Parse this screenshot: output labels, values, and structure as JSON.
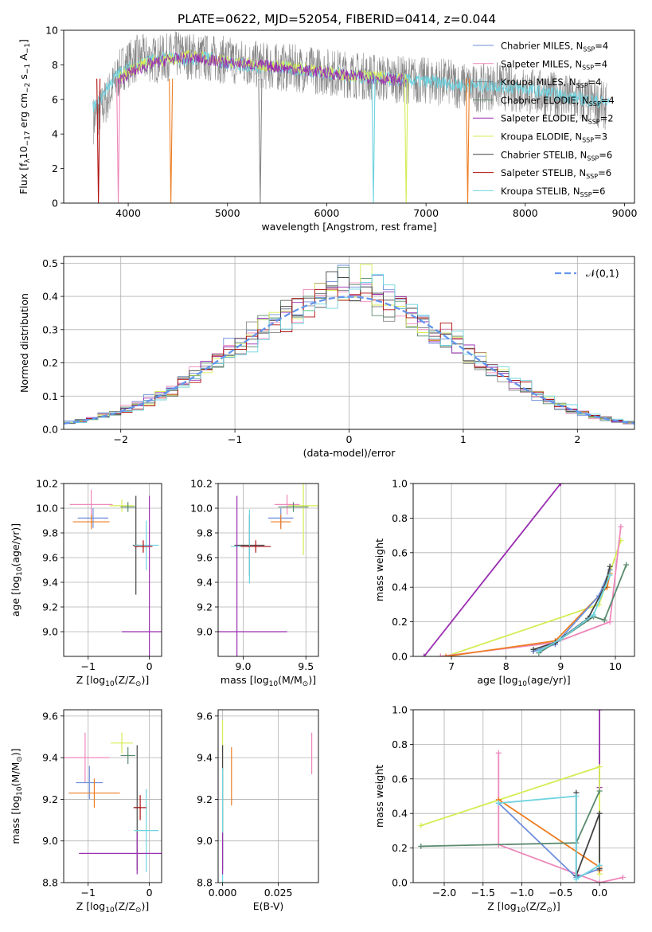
{
  "figure_title": "PLATE=0622, MJD=52054, FIBERID=0414, z=0.044",
  "colors": {
    "chabrier_miles": "#6e8fdc",
    "salpeter_miles": "#ee88bb",
    "kroupa_miles": "#888888",
    "chabrier_elodie": "#5a8a6e",
    "salpeter_elodie": "#9a2fb0",
    "kroupa_elodie": "#d6ec55",
    "chabrier_stelib": "#444444",
    "salpeter_stelib": "#b01010",
    "kroupa_stelib": "#6fd3e0",
    "orange": "#ee7d22",
    "normal": "#6495ed"
  },
  "chart_data": [
    {
      "id": "spectrum",
      "type": "line",
      "xlabel": "wavelength [Angstrom, rest frame]",
      "ylabel_tex": "Flux [f",
      "ylabel_parts": [
        "Flux [f",
        "λ",
        "10",
        "−17",
        " erg cm",
        "−2",
        " s",
        "−1",
        " A",
        "−1",
        "]"
      ],
      "xlim": [
        3350,
        9100
      ],
      "ylim": [
        0,
        10
      ],
      "xticks": [
        4000,
        5000,
        6000,
        7000,
        8000,
        9000
      ],
      "yticks": [
        0,
        2,
        4,
        6,
        8,
        10
      ],
      "grid": false,
      "legend_position": "top-right",
      "legend": [
        {
          "label": "Chabrier MILES, N",
          "sub": "SSP",
          "suffix": "=4",
          "color_key": "chabrier_miles"
        },
        {
          "label": "Salpeter MILES, N",
          "sub": "SSP",
          "suffix": "=4",
          "color_key": "salpeter_miles"
        },
        {
          "label": "Kroupa MILES, N",
          "sub": "SSP",
          "suffix": "=4",
          "color_key": "kroupa_miles"
        },
        {
          "label": "Chabrier ELODIE, N",
          "sub": "SSP",
          "suffix": "=4",
          "color_key": "chabrier_elodie"
        },
        {
          "label": "Salpeter ELODIE, N",
          "sub": "SSP",
          "suffix": "=2",
          "color_key": "salpeter_elodie"
        },
        {
          "label": "Kroupa ELODIE, N",
          "sub": "SSP",
          "suffix": "=3",
          "color_key": "kroupa_elodie"
        },
        {
          "label": "Chabrier STELIB, N",
          "sub": "SSP",
          "suffix": "=6",
          "color_key": "chabrier_stelib"
        },
        {
          "label": "Salpeter STELIB, N",
          "sub": "SSP",
          "suffix": "=6",
          "color_key": "salpeter_stelib"
        },
        {
          "label": "Kroupa STELIB, N",
          "sub": "SSP",
          "suffix": "=6",
          "color_key": "kroupa_stelib"
        }
      ],
      "series": [
        {
          "color_key": "kroupa_miles",
          "x": [
            3650,
            3750,
            3850,
            3950,
            4100,
            4300,
            4500,
            4800,
            5100,
            5400,
            5700,
            6000,
            6300,
            6600,
            6900,
            7200,
            7500,
            7700,
            7900,
            8100,
            8300,
            8500,
            8700,
            8820
          ],
          "y": [
            4.8,
            5.6,
            6.8,
            7.9,
            8.4,
            8.3,
            8.6,
            8.4,
            8.2,
            7.9,
            7.8,
            7.6,
            7.4,
            7.2,
            7.1,
            7.0,
            6.6,
            6.8,
            6.6,
            6.4,
            6.2,
            6.0,
            5.8,
            5.6
          ],
          "noise": 1.4
        },
        {
          "color_key": "kroupa_stelib",
          "x": [
            3640,
            3700,
            3800,
            3900,
            4000,
            4200,
            4400,
            4600,
            4800,
            5000,
            5300,
            5600,
            5900,
            6200,
            6500,
            6800,
            7100,
            7400,
            7700,
            8000,
            8300,
            8600,
            8850
          ],
          "y": [
            5.5,
            5.8,
            6.8,
            7.5,
            7.8,
            8.2,
            8.4,
            8.3,
            8.4,
            8.1,
            7.9,
            7.8,
            7.6,
            7.4,
            7.2,
            7.1,
            7.0,
            6.8,
            6.8,
            6.6,
            6.3,
            6.0,
            5.8
          ],
          "noise": 0.4
        },
        {
          "color_key": "kroupa_elodie",
          "x": [
            3900,
            4000,
            4200,
            4400,
            4600,
            4800,
            5000,
            5300,
            5600,
            5900,
            6200,
            6500,
            6800
          ],
          "y": [
            7.2,
            7.6,
            8.2,
            8.3,
            8.5,
            8.4,
            8.2,
            8.0,
            7.9,
            7.7,
            7.4,
            7.3,
            7.2
          ],
          "noise": 0.35
        },
        {
          "color_key": "salpeter_elodie",
          "x": [
            3900,
            4000,
            4200,
            4400,
            4600,
            4800,
            5000,
            5300,
            5600,
            5900,
            6200,
            6500,
            6800
          ],
          "y": [
            7.0,
            7.5,
            8.0,
            8.3,
            8.4,
            8.3,
            8.1,
            8.0,
            7.8,
            7.6,
            7.4,
            7.2,
            7.1
          ],
          "noise": 0.35
        }
      ],
      "vertical_drops": [
        {
          "x": 3700,
          "color_key": "salpeter_stelib"
        },
        {
          "x": 3900,
          "color_key": "salpeter_miles"
        },
        {
          "x": 4430,
          "color_key": "orange"
        },
        {
          "x": 5330,
          "color_key": "kroupa_miles"
        },
        {
          "x": 6470,
          "color_key": "kroupa_stelib"
        },
        {
          "x": 6800,
          "color_key": "kroupa_elodie"
        },
        {
          "x": 7420,
          "color_key": "orange"
        }
      ]
    },
    {
      "id": "residuals",
      "type": "line",
      "xlabel": "(data-model)/error",
      "ylabel": "Normed distribution",
      "xlim": [
        -2.5,
        2.5
      ],
      "ylim": [
        0,
        0.52
      ],
      "xticks": [
        -2,
        -1,
        0,
        1,
        2
      ],
      "yticks": [
        0.0,
        0.1,
        0.2,
        0.3,
        0.4,
        0.5
      ],
      "grid": true,
      "legend_position": "top-right",
      "legend_label": "𝒩(0,1)",
      "normal_curve": {
        "mu": 0,
        "sigma": 1,
        "color_key": "normal"
      },
      "histogram_colors": [
        "chabrier_miles",
        "salpeter_miles",
        "kroupa_miles",
        "chabrier_elodie",
        "salpeter_elodie",
        "kroupa_elodie",
        "chabrier_stelib",
        "salpeter_stelib",
        "kroupa_stelib"
      ],
      "bin_width": 0.1
    },
    {
      "id": "age_vs_z",
      "type": "scatter",
      "xlabel_parts": [
        "Z [log",
        "10",
        "(Z/Z",
        "⊙",
        ")]"
      ],
      "ylabel_parts": [
        "age  [log",
        "10",
        "(age/yr)]"
      ],
      "xlim": [
        -1.4,
        0.2
      ],
      "ylim": [
        8.8,
        10.2
      ],
      "xticks": [
        -1,
        0
      ],
      "yticks": [
        9.0,
        9.2,
        9.4,
        9.6,
        9.8,
        10.0,
        10.2
      ],
      "grid": true,
      "points": [
        {
          "x": -0.95,
          "y": 10.03,
          "xerr": 0.35,
          "yerr": 0.12,
          "color_key": "salpeter_miles"
        },
        {
          "x": -0.92,
          "y": 9.92,
          "xerr": 0.25,
          "yerr": 0.08,
          "color_key": "chabrier_miles"
        },
        {
          "x": -0.95,
          "y": 9.89,
          "xerr": 0.3,
          "yerr": 0.06,
          "color_key": "orange"
        },
        {
          "x": -0.45,
          "y": 10.02,
          "xerr": 0.2,
          "yerr": 0.05,
          "color_key": "kroupa_elodie"
        },
        {
          "x": -0.35,
          "y": 10.01,
          "xerr": 0.12,
          "yerr": 0.04,
          "color_key": "chabrier_elodie"
        },
        {
          "x": -0.22,
          "y": 9.7,
          "xerr": 0.05,
          "yerr": 0.4,
          "color_key": "chabrier_stelib"
        },
        {
          "x": -0.05,
          "y": 9.7,
          "xerr": 0.2,
          "yerr": 0.2,
          "color_key": "kroupa_stelib"
        },
        {
          "x": -0.1,
          "y": 9.69,
          "xerr": 0.15,
          "yerr": 0.05,
          "color_key": "salpeter_stelib"
        },
        {
          "x": 0.0,
          "y": 9.0,
          "xerr": 0.45,
          "yerr": 1.1,
          "color_key": "salpeter_elodie"
        }
      ]
    },
    {
      "id": "age_vs_mass",
      "type": "scatter",
      "xlabel_parts": [
        "mass [log",
        "10",
        "(M/M",
        "⊙",
        ")]"
      ],
      "xlim": [
        8.8,
        9.6
      ],
      "ylim": [
        8.8,
        10.2
      ],
      "xticks": [
        9.0,
        9.5
      ],
      "yticks": [
        9.0,
        9.2,
        9.4,
        9.6,
        9.8,
        10.0,
        10.2
      ],
      "grid": true,
      "points": [
        {
          "x": 9.35,
          "y": 10.03,
          "xerr": 0.1,
          "yerr": 0.08,
          "color_key": "salpeter_miles"
        },
        {
          "x": 9.3,
          "y": 9.92,
          "xerr": 0.1,
          "yerr": 0.08,
          "color_key": "chabrier_miles"
        },
        {
          "x": 9.3,
          "y": 9.89,
          "xerr": 0.08,
          "yerr": 0.06,
          "color_key": "orange"
        },
        {
          "x": 9.48,
          "y": 10.02,
          "xerr": 0.12,
          "yerr": 0.4,
          "color_key": "kroupa_elodie"
        },
        {
          "x": 9.4,
          "y": 10.01,
          "xerr": 0.12,
          "yerr": 0.04,
          "color_key": "chabrier_elodie"
        },
        {
          "x": 9.05,
          "y": 9.7,
          "xerr": 0.12,
          "yerr": 0.25,
          "color_key": "chabrier_stelib"
        },
        {
          "x": 9.05,
          "y": 9.69,
          "xerr": 0.15,
          "yerr": 0.3,
          "color_key": "kroupa_stelib"
        },
        {
          "x": 9.1,
          "y": 9.69,
          "xerr": 0.12,
          "yerr": 0.05,
          "color_key": "salpeter_stelib"
        },
        {
          "x": 8.95,
          "y": 9.0,
          "xerr": 0.4,
          "yerr": 1.1,
          "color_key": "salpeter_elodie"
        }
      ]
    },
    {
      "id": "mass_weight_vs_age",
      "type": "line",
      "xlabel_parts": [
        "age  [log",
        "10",
        "(age/yr)]"
      ],
      "ylabel": "mass weight",
      "xlim": [
        6.3,
        10.35
      ],
      "ylim": [
        0,
        1
      ],
      "xticks": [
        7,
        8,
        9,
        10
      ],
      "yticks": [
        0.0,
        0.2,
        0.4,
        0.6,
        0.8,
        1.0
      ],
      "grid": true,
      "series": [
        {
          "color_key": "salpeter_elodie",
          "x": [
            6.5,
            9.0
          ],
          "y": [
            0.0,
            1.0
          ]
        },
        {
          "color_key": "kroupa_elodie",
          "x": [
            6.9,
            9.7,
            10.1
          ],
          "y": [
            0.0,
            0.3,
            0.67
          ]
        },
        {
          "color_key": "salpeter_miles",
          "x": [
            6.8,
            8.9,
            9.9,
            10.1
          ],
          "y": [
            0.0,
            0.08,
            0.2,
            0.75
          ]
        },
        {
          "color_key": "orange",
          "x": [
            6.9,
            8.9,
            9.85,
            9.9
          ],
          "y": [
            0.0,
            0.09,
            0.4,
            0.48
          ]
        },
        {
          "color_key": "chabrier_miles",
          "x": [
            8.5,
            8.9,
            9.7,
            9.9
          ],
          "y": [
            0.03,
            0.07,
            0.35,
            0.5
          ]
        },
        {
          "color_key": "chabrier_elodie",
          "x": [
            8.6,
            9.0,
            9.6,
            9.8,
            10.2
          ],
          "y": [
            0.02,
            0.1,
            0.23,
            0.21,
            0.53
          ]
        },
        {
          "color_key": "chabrier_stelib",
          "x": [
            8.5,
            8.9,
            9.5,
            9.8,
            9.9
          ],
          "y": [
            0.04,
            0.08,
            0.22,
            0.4,
            0.52
          ]
        },
        {
          "color_key": "kroupa_stelib",
          "x": [
            8.6,
            9.0,
            9.6,
            9.9
          ],
          "y": [
            0.03,
            0.1,
            0.24,
            0.47
          ]
        }
      ]
    },
    {
      "id": "mass_vs_z",
      "type": "scatter",
      "xlabel_parts": [
        "Z [log",
        "10",
        "(Z/Z",
        "⊙",
        ")]"
      ],
      "ylabel_parts": [
        "mass [log",
        "10",
        "(M/M",
        "⊙",
        ")]"
      ],
      "xlim": [
        -1.4,
        0.2
      ],
      "ylim": [
        8.8,
        9.63
      ],
      "xticks": [
        -1,
        0
      ],
      "yticks": [
        8.8,
        9.0,
        9.2,
        9.4,
        9.6
      ],
      "grid": true,
      "points": [
        {
          "x": -1.05,
          "y": 9.4,
          "xerr": 0.4,
          "yerr": 0.12,
          "color_key": "salpeter_miles"
        },
        {
          "x": -0.98,
          "y": 9.28,
          "xerr": 0.22,
          "yerr": 0.08,
          "color_key": "chabrier_miles"
        },
        {
          "x": -0.9,
          "y": 9.23,
          "xerr": 0.42,
          "yerr": 0.07,
          "color_key": "orange"
        },
        {
          "x": -0.45,
          "y": 9.47,
          "xerr": 0.18,
          "yerr": 0.05,
          "color_key": "kroupa_elodie"
        },
        {
          "x": -0.35,
          "y": 9.41,
          "xerr": 0.12,
          "yerr": 0.04,
          "color_key": "chabrier_elodie"
        },
        {
          "x": -0.2,
          "y": 9.16,
          "xerr": 0.06,
          "yerr": 0.3,
          "color_key": "chabrier_stelib"
        },
        {
          "x": -0.05,
          "y": 9.05,
          "xerr": 0.2,
          "yerr": 0.2,
          "color_key": "kroupa_stelib"
        },
        {
          "x": -0.15,
          "y": 9.16,
          "xerr": 0.1,
          "yerr": 0.06,
          "color_key": "salpeter_stelib"
        },
        {
          "x": -0.2,
          "y": 8.94,
          "xerr": 0.95,
          "yerr": 0.1,
          "color_key": "salpeter_elodie"
        }
      ]
    },
    {
      "id": "mass_vs_ebv",
      "type": "scatter",
      "xlabel": "E(B-V)",
      "xlim": [
        -0.002,
        0.043
      ],
      "ylim": [
        8.8,
        9.63
      ],
      "xticks": [
        0.0,
        0.025
      ],
      "xtick_labels": [
        "0.000",
        "0.025"
      ],
      "yticks": [
        8.8,
        9.0,
        9.2,
        9.4,
        9.6
      ],
      "grid": true,
      "points": [
        {
          "x": 0.04,
          "y": 9.42,
          "yerr": 0.1,
          "color_key": "salpeter_miles"
        },
        {
          "x": 0.004,
          "y": 9.31,
          "yerr": 0.14,
          "color_key": "orange"
        },
        {
          "x": 0.0,
          "y": 9.28,
          "yerr": 0.3,
          "color_key": "kroupa_elodie"
        },
        {
          "x": 0.0,
          "y": 9.16,
          "yerr": 0.3,
          "color_key": "chabrier_stelib"
        },
        {
          "x": 0.0,
          "y": 9.05,
          "yerr": 0.3,
          "color_key": "kroupa_stelib"
        },
        {
          "x": 0.0,
          "y": 8.94,
          "yerr": 0.1,
          "color_key": "salpeter_elodie"
        }
      ]
    },
    {
      "id": "mass_weight_vs_z",
      "type": "line",
      "xlabel_parts": [
        "Z [log",
        "10",
        "(Z/Z",
        "⊙",
        ")]"
      ],
      "ylabel": "mass weight",
      "xlim": [
        -2.4,
        0.45
      ],
      "ylim": [
        0,
        1
      ],
      "xticks": [
        -2.0,
        -1.5,
        -1.0,
        -0.5,
        0.0
      ],
      "yticks": [
        0.0,
        0.2,
        0.4,
        0.6,
        0.8,
        1.0
      ],
      "grid": true,
      "series": [
        {
          "color_key": "salpeter_elodie",
          "x": [
            0.0,
            0.0
          ],
          "y": [
            0.55,
            1.0
          ]
        },
        {
          "color_key": "kroupa_elodie",
          "x": [
            -2.3,
            0.0,
            0.0
          ],
          "y": [
            0.33,
            0.67,
            0.05
          ]
        },
        {
          "color_key": "salpeter_miles",
          "x": [
            -1.3,
            -1.3,
            -1.3,
            0.0,
            0.3
          ],
          "y": [
            0.75,
            0.22,
            0.22,
            0.0,
            0.03
          ]
        },
        {
          "color_key": "orange",
          "x": [
            -1.3,
            0.0,
            0.0
          ],
          "y": [
            0.48,
            0.09,
            0.07
          ]
        },
        {
          "color_key": "chabrier_miles",
          "x": [
            -1.3,
            -0.3,
            0.0
          ],
          "y": [
            0.46,
            0.03,
            0.08
          ]
        },
        {
          "color_key": "chabrier_elodie",
          "x": [
            -2.3,
            -0.3,
            0.0
          ],
          "y": [
            0.21,
            0.23,
            0.53
          ]
        },
        {
          "color_key": "chabrier_stelib",
          "x": [
            -0.3,
            -0.3,
            0.0,
            0.0
          ],
          "y": [
            0.52,
            0.04,
            0.4,
            0.08
          ]
        },
        {
          "color_key": "kroupa_stelib",
          "x": [
            -1.3,
            -0.3,
            -0.3,
            0.0
          ],
          "y": [
            0.46,
            0.5,
            0.02,
            0.1
          ]
        }
      ]
    }
  ]
}
